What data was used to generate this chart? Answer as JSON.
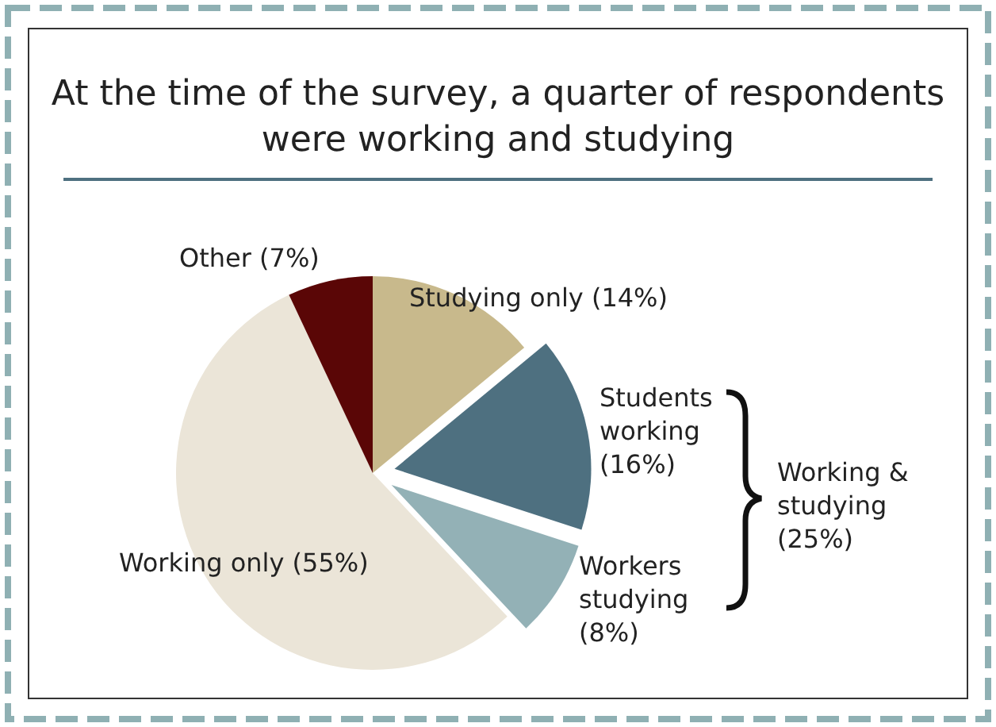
{
  "chart_data": {
    "type": "pie",
    "title": "At the time of the survey, a quarter of respondents were working and studying",
    "categories": [
      "Studying only",
      "Students working",
      "Workers studying",
      "Working only",
      "Other"
    ],
    "values": [
      14,
      16,
      8,
      55,
      7
    ],
    "value_labels": [
      "(14%)",
      "(16%)",
      "(8%)",
      "(55%)",
      "(7%)"
    ],
    "colors": [
      "#c8b98c",
      "#4e7080",
      "#93b1b6",
      "#ebe5d8",
      "#5a0606"
    ],
    "annotations": [
      "Working & studying (25%)"
    ]
  }
}
